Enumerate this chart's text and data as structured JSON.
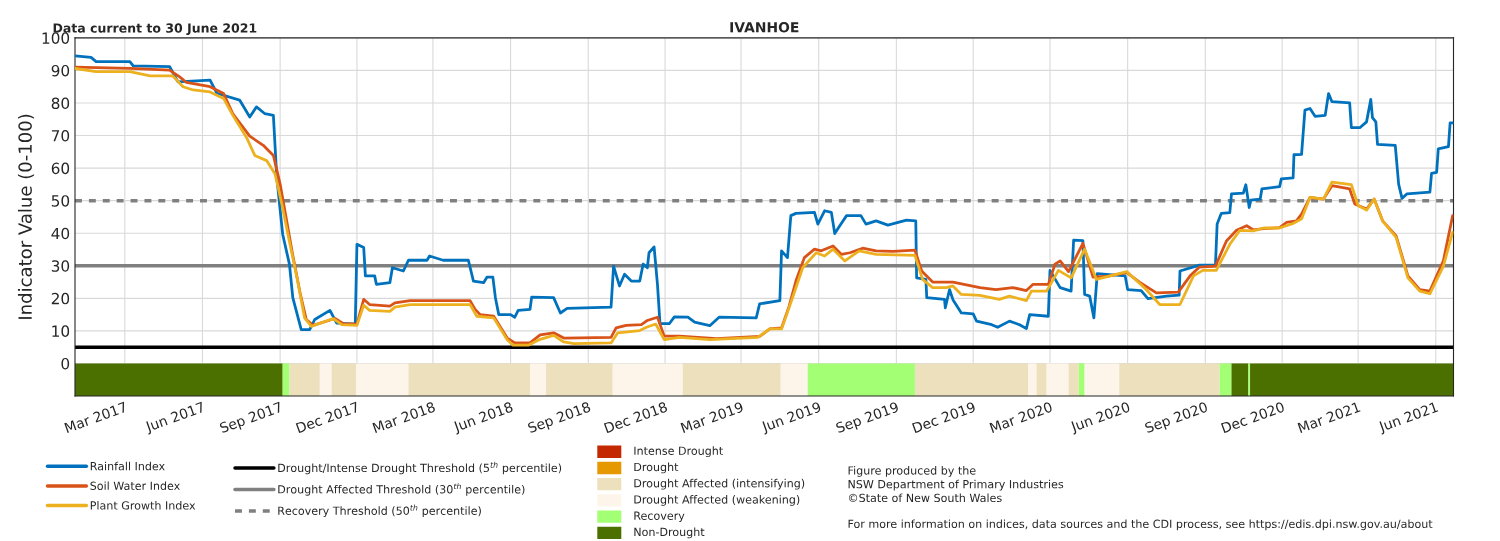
{
  "chart_data": [
    {
      "type": "line",
      "title": "IVANHOE",
      "ylabel": "Indicator Value (0-100)",
      "annotations": [
        "Data current to 30 June 2021",
        "Figure produced by the\nNSW Department of Primary Industries\n©State of New South Wales",
        "For more information on indices, data sources and the CDI process, see https://edis.dpi.nsw.gov.au/about"
      ],
      "xlim": [
        "2017-01-01",
        "2021-06-22"
      ],
      "xticks": [
        {
          "value": "2017-03-01",
          "label": "Mar 2017"
        },
        {
          "value": "2017-06-01",
          "label": "Jun 2017"
        },
        {
          "value": "2017-09-01",
          "label": "Sep 2017"
        },
        {
          "value": "2017-12-01",
          "label": "Dec 2017"
        },
        {
          "value": "2018-03-01",
          "label": "Mar 2018"
        },
        {
          "value": "2018-06-01",
          "label": "Jun 2018"
        },
        {
          "value": "2018-09-01",
          "label": "Sep 2018"
        },
        {
          "value": "2018-12-01",
          "label": "Dec 2018"
        },
        {
          "value": "2019-03-01",
          "label": "Mar 2019"
        },
        {
          "value": "2019-06-01",
          "label": "Jun 2019"
        },
        {
          "value": "2019-09-01",
          "label": "Sep 2019"
        },
        {
          "value": "2019-12-01",
          "label": "Dec 2019"
        },
        {
          "value": "2020-03-01",
          "label": "Mar 2020"
        },
        {
          "value": "2020-06-01",
          "label": "Jun 2020"
        },
        {
          "value": "2020-09-01",
          "label": "Sep 2020"
        },
        {
          "value": "2020-12-01",
          "label": "Dec 2020"
        },
        {
          "value": "2021-03-01",
          "label": "Mar 2021"
        },
        {
          "value": "2021-06-01",
          "label": "Jun 2021"
        }
      ],
      "ylim": [
        -10,
        100
      ],
      "yticks": [
        0,
        10,
        20,
        30,
        40,
        50,
        60,
        70,
        80,
        90,
        100
      ],
      "grid": true,
      "legend": "bottom",
      "series": [
        {
          "name": "Rainfall Index",
          "color": "#0072bd",
          "x": [
            "2017-01-01",
            "2017-01-20",
            "2017-01-26",
            "2017-03-07",
            "2017-03-11",
            "2017-04-23",
            "2017-05-03",
            "2017-06-10",
            "2017-06-18",
            "2017-07-15",
            "2017-07-27",
            "2017-08-04",
            "2017-08-14",
            "2017-08-24",
            "2017-08-28",
            "2017-09-04",
            "2017-09-12",
            "2017-09-16",
            "2017-09-26",
            "2017-10-06",
            "2017-10-12",
            "2017-10-30",
            "2017-11-07",
            "2017-11-29",
            "2017-12-01",
            "2017-12-09",
            "2017-12-11",
            "2017-12-22",
            "2017-12-24",
            "2018-01-09",
            "2018-01-12",
            "2018-01-25",
            "2018-01-31",
            "2018-02-22",
            "2018-02-25",
            "2018-03-13",
            "2018-04-12",
            "2018-04-18",
            "2018-04-30",
            "2018-05-04",
            "2018-05-11",
            "2018-05-14",
            "2018-05-18",
            "2018-06-01",
            "2018-06-06",
            "2018-06-10",
            "2018-06-24",
            "2018-06-26",
            "2018-07-22",
            "2018-07-30",
            "2018-08-07",
            "2018-09-28",
            "2018-10-01",
            "2018-10-08",
            "2018-10-14",
            "2018-10-22",
            "2018-11-01",
            "2018-11-05",
            "2018-11-10",
            "2018-11-12",
            "2018-11-18",
            "2018-11-22",
            "2018-11-25",
            "2018-12-06",
            "2018-12-12",
            "2018-12-28",
            "2019-01-05",
            "2019-01-23",
            "2019-02-03",
            "2019-03-19",
            "2019-03-23",
            "2019-04-16",
            "2019-04-18",
            "2019-04-25",
            "2019-04-29",
            "2019-05-05",
            "2019-05-27",
            "2019-05-31",
            "2019-06-08",
            "2019-06-16",
            "2019-06-20",
            "2019-06-26",
            "2019-07-04",
            "2019-07-21",
            "2019-07-27",
            "2019-08-08",
            "2019-08-22",
            "2019-09-13",
            "2019-09-24",
            "2019-09-25",
            "2019-10-06",
            "2019-10-07",
            "2019-10-28",
            "2019-10-29",
            "2019-11-03",
            "2019-11-07",
            "2019-11-17",
            "2019-12-01",
            "2019-12-05",
            "2019-12-23",
            "2019-12-30",
            "2020-01-13",
            "2020-01-25",
            "2020-02-02",
            "2020-02-06",
            "2020-02-28",
            "2020-03-01",
            "2020-03-13",
            "2020-03-26",
            "2020-03-29",
            "2020-04-09",
            "2020-04-11",
            "2020-04-17",
            "2020-04-22",
            "2020-04-26",
            "2020-05-29",
            "2020-06-01",
            "2020-06-17",
            "2020-06-25",
            "2020-07-17",
            "2020-08-01",
            "2020-08-02",
            "2020-08-25",
            "2020-09-13",
            "2020-09-15",
            "2020-09-20",
            "2020-09-30",
            "2020-10-02",
            "2020-10-16",
            "2020-10-19",
            "2020-10-23",
            "2020-10-25",
            "2020-11-05",
            "2020-11-07",
            "2020-11-28",
            "2020-11-30",
            "2020-12-14",
            "2020-12-15",
            "2020-12-24",
            "2020-12-28",
            "2021-01-03",
            "2021-01-09",
            "2021-01-21",
            "2021-01-25",
            "2021-01-29",
            "2021-02-19",
            "2021-02-21",
            "2021-03-03",
            "2021-03-11",
            "2021-03-16",
            "2021-03-18",
            "2021-03-22",
            "2021-03-24",
            "2021-04-14",
            "2021-04-18",
            "2021-04-22",
            "2021-04-28",
            "2021-05-25",
            "2021-05-27",
            "2021-06-02",
            "2021-06-04",
            "2021-06-16",
            "2021-06-18",
            "2021-06-21"
          ],
          "values": [
            94.5,
            94,
            92.7,
            92.7,
            91.4,
            91.2,
            86.5,
            87,
            83,
            80.9,
            75.7,
            78.8,
            76.7,
            76.2,
            57.2,
            39.7,
            30.5,
            20.2,
            10.4,
            10.4,
            13.5,
            16.3,
            12.4,
            12.1,
            36.6,
            35.6,
            26.9,
            26.9,
            24.3,
            24.8,
            29.4,
            28.4,
            31.7,
            31.7,
            33,
            31.7,
            31.7,
            25.3,
            24.8,
            26.5,
            26.5,
            20.2,
            15,
            15,
            14.2,
            16.3,
            16.6,
            20.4,
            20.2,
            15.5,
            16.9,
            17.3,
            29.9,
            23.8,
            27.4,
            25.3,
            25.3,
            30.5,
            29.4,
            34,
            35.8,
            24.3,
            12.2,
            12.2,
            14.3,
            14.2,
            12.7,
            11.6,
            14.2,
            14,
            18.3,
            19.3,
            34.6,
            32.5,
            45.4,
            46.1,
            46.4,
            42.8,
            46.9,
            46.4,
            39.9,
            42.3,
            45.4,
            45.4,
            42.8,
            43.8,
            42.5,
            44,
            43.8,
            26.3,
            25.8,
            20.2,
            19.7,
            17.1,
            22.7,
            19.6,
            15.5,
            15.2,
            13,
            11.9,
            11.1,
            13,
            11.9,
            10.7,
            15,
            14.5,
            28.6,
            23.3,
            22.2,
            37.9,
            37.7,
            21.2,
            20.7,
            14,
            27.6,
            26.9,
            22.7,
            22.4,
            19.9,
            20.7,
            21,
            28.4,
            30.2,
            30.2,
            42.8,
            46.1,
            46.3,
            52.1,
            52.3,
            54.9,
            47.9,
            50.2,
            50.5,
            53.6,
            54.3,
            56.7,
            57,
            64.1,
            64.2,
            77.8,
            78.3,
            75.9,
            76.2,
            82.9,
            80.4,
            80,
            72.4,
            72.4,
            74.2,
            81.1,
            75.5,
            74.2,
            67.3,
            67,
            55.1,
            50.7,
            52.1,
            52.6,
            58.4,
            58.7,
            65.9,
            66.6,
            73.9,
            73.9
          ]
        },
        {
          "name": "Soil Water Index",
          "color": "#d95319",
          "x": [
            "2017-01-01",
            "2017-03-07",
            "2017-04-23",
            "2017-05-05",
            "2017-05-13",
            "2017-06-10",
            "2017-06-26",
            "2017-07-07",
            "2017-07-27",
            "2017-08-12",
            "2017-08-24",
            "2017-09-01",
            "2017-09-08",
            "2017-09-15",
            "2017-09-25",
            "2017-10-02",
            "2017-10-10",
            "2017-11-05",
            "2017-11-15",
            "2017-12-01",
            "2017-12-09",
            "2017-12-16",
            "2018-01-09",
            "2018-01-15",
            "2018-02-02",
            "2018-04-14",
            "2018-04-20",
            "2018-04-26",
            "2018-05-12",
            "2018-05-28",
            "2018-06-06",
            "2018-06-24",
            "2018-07-06",
            "2018-07-22",
            "2018-08-03",
            "2018-09-28",
            "2018-10-04",
            "2018-10-16",
            "2018-11-03",
            "2018-11-10",
            "2018-11-22",
            "2018-11-30",
            "2018-12-18",
            "2019-01-31",
            "2019-03-23",
            "2019-04-04",
            "2019-04-18",
            "2019-04-27",
            "2019-05-05",
            "2019-05-15",
            "2019-05-27",
            "2019-06-04",
            "2019-06-18",
            "2019-06-28",
            "2019-07-08",
            "2019-07-23",
            "2019-08-08",
            "2019-08-28",
            "2019-09-23",
            "2019-10-01",
            "2019-10-14",
            "2019-11-07",
            "2019-12-09",
            "2019-12-28",
            "2020-01-17",
            "2020-02-02",
            "2020-02-10",
            "2020-02-28",
            "2020-03-07",
            "2020-03-13",
            "2020-03-23",
            "2020-04-09",
            "2020-04-21",
            "2020-05-09",
            "2020-05-31",
            "2020-06-15",
            "2020-07-05",
            "2020-07-31",
            "2020-08-14",
            "2020-08-25",
            "2020-09-13",
            "2020-09-26",
            "2020-10-08",
            "2020-10-20",
            "2020-10-28",
            "2020-11-09",
            "2020-11-28",
            "2020-12-06",
            "2020-12-18",
            "2020-12-24",
            "2021-01-03",
            "2021-01-19",
            "2021-01-29",
            "2021-02-19",
            "2021-02-25",
            "2021-03-11",
            "2021-03-20",
            "2021-03-30",
            "2021-04-15",
            "2021-04-29",
            "2021-05-13",
            "2021-05-25",
            "2021-06-10",
            "2021-06-21"
          ],
          "values": [
            91,
            90.6,
            90.1,
            88,
            86.3,
            85,
            82.9,
            76.7,
            69.8,
            67,
            63.9,
            55.1,
            44.9,
            34.6,
            21.2,
            13.5,
            11.7,
            13.8,
            12.2,
            12.1,
            19.7,
            18.1,
            17.6,
            18.6,
            19.3,
            19.3,
            16.6,
            15,
            14.5,
            7.8,
            6.3,
            6.3,
            8.8,
            9.4,
            7.8,
            8,
            10.9,
            11.7,
            11.9,
            13.2,
            14.2,
            8.4,
            8.4,
            7.6,
            8.3,
            10.6,
            10.9,
            17.6,
            25.3,
            32.5,
            35.1,
            34.6,
            36.1,
            33.5,
            34,
            35.4,
            34.6,
            34.4,
            34.8,
            28.4,
            25,
            25,
            23.3,
            22.7,
            23.3,
            22.4,
            24.3,
            24.3,
            30.5,
            31.5,
            28.2,
            36.9,
            26.5,
            26.8,
            27.9,
            25,
            21.7,
            21.9,
            26.9,
            29.6,
            29.9,
            37.6,
            40.9,
            42.3,
            41,
            41.4,
            41.7,
            43.3,
            43.8,
            45.9,
            51,
            50.5,
            54.6,
            53.6,
            49,
            47.4,
            50.5,
            43.8,
            39.2,
            26.9,
            22.7,
            22.2,
            31.5,
            45.4
          ]
        },
        {
          "name": "Plant Growth Index",
          "color": "#edb120",
          "x": [
            "2017-01-01",
            "2017-01-26",
            "2017-03-07",
            "2017-03-31",
            "2017-04-27",
            "2017-05-09",
            "2017-05-21",
            "2017-06-10",
            "2017-06-26",
            "2017-07-07",
            "2017-07-23",
            "2017-08-02",
            "2017-08-16",
            "2017-08-26",
            "2017-09-03",
            "2017-09-11",
            "2017-09-21",
            "2017-09-30",
            "2017-10-08",
            "2017-11-03",
            "2017-11-13",
            "2017-12-01",
            "2017-12-09",
            "2017-12-16",
            "2018-01-09",
            "2018-01-15",
            "2018-02-02",
            "2018-04-14",
            "2018-04-22",
            "2018-05-12",
            "2018-05-28",
            "2018-06-04",
            "2018-06-22",
            "2018-07-06",
            "2018-07-22",
            "2018-08-03",
            "2018-08-15",
            "2018-09-28",
            "2018-10-06",
            "2018-11-01",
            "2018-11-09",
            "2018-11-20",
            "2018-11-30",
            "2018-12-18",
            "2019-01-23",
            "2019-03-21",
            "2019-04-04",
            "2019-04-18",
            "2019-05-01",
            "2019-05-13",
            "2019-05-29",
            "2019-06-08",
            "2019-06-18",
            "2019-07-02",
            "2019-07-19",
            "2019-08-08",
            "2019-09-23",
            "2019-10-02",
            "2019-10-14",
            "2019-10-30",
            "2019-11-07",
            "2019-11-17",
            "2019-12-09",
            "2020-01-01",
            "2020-01-13",
            "2020-02-02",
            "2020-02-08",
            "2020-02-26",
            "2020-03-11",
            "2020-03-26",
            "2020-04-11",
            "2020-04-25",
            "2020-05-31",
            "2020-06-23",
            "2020-07-09",
            "2020-08-02",
            "2020-08-18",
            "2020-08-29",
            "2020-09-14",
            "2020-09-30",
            "2020-10-12",
            "2020-10-28",
            "2020-11-09",
            "2020-11-28",
            "2020-12-14",
            "2020-12-24",
            "2021-01-03",
            "2021-01-19",
            "2021-01-29",
            "2021-02-21",
            "2021-03-01",
            "2021-03-11",
            "2021-03-20",
            "2021-03-30",
            "2021-04-15",
            "2021-04-29",
            "2021-05-13",
            "2021-05-25",
            "2021-06-10",
            "2021-06-21"
          ],
          "values": [
            90.6,
            89.6,
            89.6,
            88.3,
            88.3,
            85,
            84,
            83.4,
            81.4,
            76.2,
            69.5,
            63.9,
            62.3,
            58.2,
            49,
            38.7,
            26.3,
            14,
            11.4,
            13.8,
            11.9,
            11.7,
            17.9,
            16.3,
            16,
            17.3,
            18.1,
            18.1,
            14.5,
            14,
            7.3,
            5.6,
            5.6,
            7.4,
            8.6,
            6.6,
            6.1,
            6.3,
            9.4,
            10.1,
            11.1,
            12.1,
            7.3,
            8,
            7.3,
            8,
            10.6,
            10.6,
            20.2,
            29.4,
            34,
            33,
            35.1,
            31.5,
            34.6,
            33.5,
            33.2,
            25.8,
            23.3,
            23.3,
            23.8,
            21.2,
            20.9,
            19.7,
            20.7,
            19.3,
            22.2,
            22.2,
            28.6,
            26.3,
            35.1,
            25.8,
            28.2,
            22.7,
            18.1,
            18.1,
            26.9,
            28.6,
            28.6,
            36.6,
            40.9,
            40.7,
            41.6,
            41.6,
            43,
            44.4,
            51,
            50.5,
            55.7,
            54.9,
            48.5,
            47.1,
            50.5,
            43.8,
            38.7,
            26.3,
            22.2,
            21.4,
            29.9,
            40.3
          ]
        }
      ],
      "ref_lines": [
        {
          "axis": "y",
          "value": 5,
          "label": "Drought/Intense Drought Threshold (5$^{th}$ percentile)",
          "color": "#000000",
          "line_style": "solid"
        },
        {
          "axis": "y",
          "value": 30,
          "label": "Drought Affected Threshold (30$^{th}$ percentile)",
          "color": "#808080",
          "line_style": "solid"
        },
        {
          "axis": "y",
          "value": 50,
          "label": "Recovery Threshold (50$^{th}$ percentile)",
          "color": "#808080",
          "line_style": "dotted"
        }
      ],
      "bands": [
        {
          "axis": "x",
          "from": "2017-01-01",
          "to": "2017-09-04",
          "color": "#4c7000"
        },
        {
          "axis": "x",
          "from": "2017-09-04",
          "to": "2017-09-12",
          "color": "#a3ff73"
        },
        {
          "axis": "x",
          "from": "2017-09-12",
          "to": "2017-10-18",
          "color": "#ede1bd"
        },
        {
          "axis": "x",
          "from": "2017-10-18",
          "to": "2017-11-01",
          "color": "#fdf5e9"
        },
        {
          "axis": "x",
          "from": "2017-11-01",
          "to": "2017-11-30",
          "color": "#ede1bd"
        },
        {
          "axis": "x",
          "from": "2017-11-30",
          "to": "2018-01-31",
          "color": "#fdf5e9"
        },
        {
          "axis": "x",
          "from": "2018-01-31",
          "to": "2018-06-24",
          "color": "#ede1bd"
        },
        {
          "axis": "x",
          "from": "2018-06-24",
          "to": "2018-07-13",
          "color": "#fdf5e9"
        },
        {
          "axis": "x",
          "from": "2018-07-13",
          "to": "2018-09-30",
          "color": "#ede1bd"
        },
        {
          "axis": "x",
          "from": "2018-09-30",
          "to": "2018-12-22",
          "color": "#fdf5e9"
        },
        {
          "axis": "x",
          "from": "2018-12-22",
          "to": "2019-04-17",
          "color": "#ede1bd"
        },
        {
          "axis": "x",
          "from": "2019-04-17",
          "to": "2019-05-19",
          "color": "#fdf5e9"
        },
        {
          "axis": "x",
          "from": "2019-05-19",
          "to": "2019-09-23",
          "color": "#a3ff73"
        },
        {
          "axis": "x",
          "from": "2019-09-23",
          "to": "2020-02-04",
          "color": "#ede1bd"
        },
        {
          "axis": "x",
          "from": "2020-02-04",
          "to": "2020-02-14",
          "color": "#fdf5e9"
        },
        {
          "axis": "x",
          "from": "2020-02-14",
          "to": "2020-02-26",
          "color": "#ede1bd"
        },
        {
          "axis": "x",
          "from": "2020-02-26",
          "to": "2020-03-23",
          "color": "#fdf5e9"
        },
        {
          "axis": "x",
          "from": "2020-03-23",
          "to": "2020-04-04",
          "color": "#ede1bd"
        },
        {
          "axis": "x",
          "from": "2020-04-04",
          "to": "2020-04-11",
          "color": "#a3ff73"
        },
        {
          "axis": "x",
          "from": "2020-04-11",
          "to": "2020-05-22",
          "color": "#fdf5e9"
        },
        {
          "axis": "x",
          "from": "2020-05-22",
          "to": "2020-09-18",
          "color": "#ede1bd"
        },
        {
          "axis": "x",
          "from": "2020-09-18",
          "to": "2020-10-02",
          "color": "#a3ff73"
        },
        {
          "axis": "x",
          "from": "2020-10-02",
          "to": "2020-10-22",
          "color": "#4c7000"
        },
        {
          "axis": "x",
          "from": "2020-10-22",
          "to": "2020-10-24",
          "color": "#a3ff73"
        },
        {
          "axis": "x",
          "from": "2020-10-24",
          "to": "2021-06-22",
          "color": "#4c7000"
        }
      ]
    },
    {
      "type": "other",
      "categories": [
        "Intense Drought",
        "Drought",
        "Drought Affected (intensifying)",
        "Drought Affected (weakening)",
        "Recovery",
        "Non-Drought"
      ],
      "colors": [
        "#c42800",
        "#e69800",
        "#ede1bd",
        "#fdf5e9",
        "#a3ff73",
        "#4c7000"
      ]
    }
  ]
}
